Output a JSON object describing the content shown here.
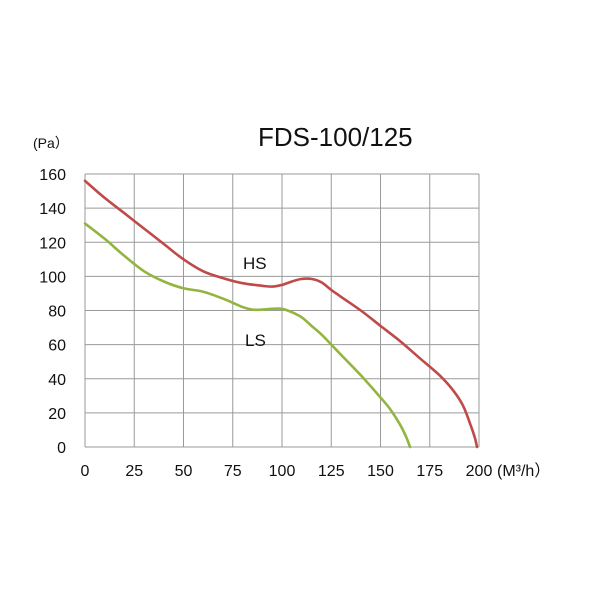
{
  "chart_data": {
    "type": "line",
    "title": "FDS-100/125",
    "ylabel": "(Pa）",
    "xlabel": "(M³/h）",
    "xlim": [
      0,
      200
    ],
    "ylim": [
      0,
      160
    ],
    "x_ticks": [
      0,
      25,
      50,
      75,
      100,
      125,
      150,
      175,
      200
    ],
    "y_ticks": [
      0,
      20,
      40,
      60,
      80,
      100,
      120,
      140,
      160
    ],
    "grid": true,
    "series": [
      {
        "name": "HS",
        "color": "#c0494a",
        "points": [
          [
            0,
            156
          ],
          [
            10,
            146
          ],
          [
            20,
            137
          ],
          [
            30,
            128
          ],
          [
            40,
            119
          ],
          [
            50,
            110
          ],
          [
            60,
            103
          ],
          [
            70,
            99
          ],
          [
            80,
            96
          ],
          [
            90,
            94.5
          ],
          [
            95,
            94
          ],
          [
            100,
            95
          ],
          [
            105,
            97
          ],
          [
            110,
            98.5
          ],
          [
            115,
            98.5
          ],
          [
            120,
            96.5
          ],
          [
            125,
            92
          ],
          [
            130,
            88
          ],
          [
            140,
            80
          ],
          [
            150,
            71
          ],
          [
            160,
            62
          ],
          [
            170,
            52
          ],
          [
            180,
            42
          ],
          [
            187,
            33
          ],
          [
            192,
            24
          ],
          [
            196,
            12
          ],
          [
            198,
            5
          ],
          [
            199,
            0
          ]
        ]
      },
      {
        "name": "LS",
        "color": "#93b540",
        "points": [
          [
            0,
            131
          ],
          [
            10,
            122
          ],
          [
            20,
            112
          ],
          [
            30,
            103
          ],
          [
            40,
            97
          ],
          [
            50,
            93
          ],
          [
            60,
            91
          ],
          [
            70,
            87
          ],
          [
            80,
            82
          ],
          [
            85,
            80.5
          ],
          [
            90,
            80.5
          ],
          [
            95,
            81
          ],
          [
            100,
            81
          ],
          [
            105,
            79
          ],
          [
            110,
            76
          ],
          [
            115,
            71
          ],
          [
            120,
            66
          ],
          [
            125,
            60
          ],
          [
            130,
            54
          ],
          [
            140,
            42
          ],
          [
            150,
            29
          ],
          [
            155,
            22
          ],
          [
            160,
            13
          ],
          [
            163,
            6
          ],
          [
            165,
            0
          ]
        ]
      }
    ]
  }
}
